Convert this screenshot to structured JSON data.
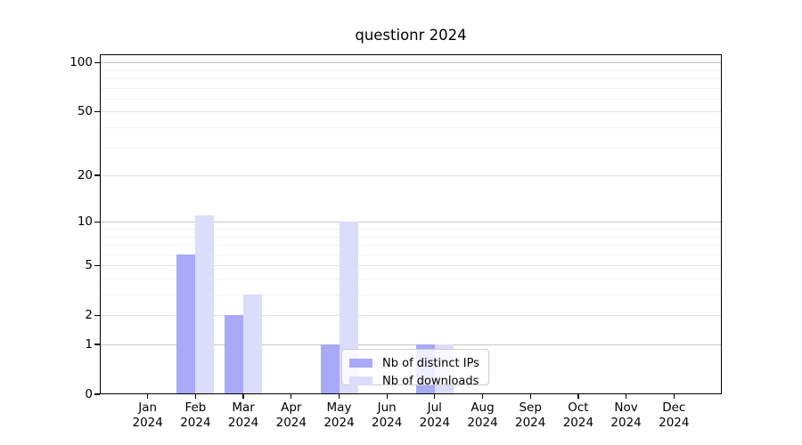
{
  "chart_data": {
    "type": "bar",
    "title": "questionr 2024",
    "categories": [
      "Jan 2024",
      "Feb 2024",
      "Mar 2024",
      "Apr 2024",
      "May 2024",
      "Jun 2024",
      "Jul 2024",
      "Aug 2024",
      "Sep 2024",
      "Oct 2024",
      "Nov 2024",
      "Dec 2024"
    ],
    "series": [
      {
        "name": "Nb of distinct IPs",
        "color": "#a9a9f7",
        "values": [
          0,
          6,
          2,
          0,
          1,
          0,
          1,
          0,
          0,
          0,
          0,
          0
        ]
      },
      {
        "name": "Nb of downloads",
        "color": "#dcdcfb",
        "values": [
          0,
          11,
          3,
          0,
          10,
          0,
          1,
          0,
          0,
          0,
          0,
          0
        ]
      }
    ],
    "xlabel": "",
    "ylabel": "",
    "yscale": "log1p",
    "ylim": [
      0,
      112
    ],
    "yticks": [
      0,
      1,
      2,
      5,
      10,
      20,
      50,
      100
    ],
    "minor_yticks": [
      3,
      4,
      6,
      7,
      8,
      9,
      30,
      40,
      60,
      70,
      80,
      90
    ],
    "grid": true,
    "legend_position": "lower center"
  },
  "colors": {
    "decade_grid": "#c4c4c4",
    "major_grid": "#e2e2e2",
    "minor_grid": "#f2f2f2",
    "spine": "#000000",
    "legend_border": "#cccccc",
    "legend_bg": "rgba(255,255,255,0.8)"
  }
}
